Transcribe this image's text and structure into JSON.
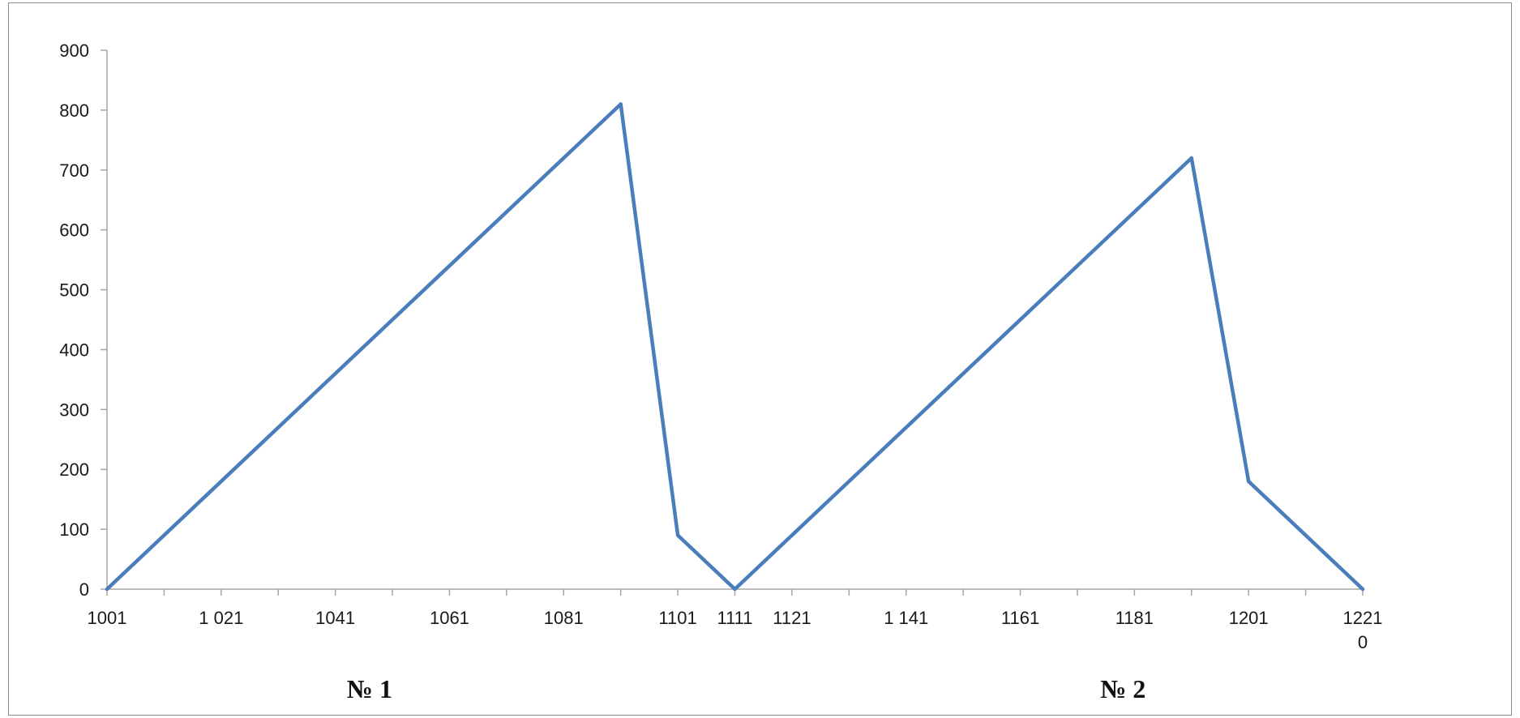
{
  "chart_data": {
    "type": "line",
    "title": "",
    "xlabel": "",
    "ylabel": "",
    "x": [
      0,
      90,
      100,
      110,
      190,
      200,
      220
    ],
    "series": [
      {
        "values": [
          0,
          810,
          90,
          0,
          720,
          180,
          0
        ],
        "color": "#4a7ebb"
      }
    ],
    "xlim": [
      0,
      220
    ],
    "ylim": [
      0,
      900
    ],
    "yticks": [
      0,
      100,
      200,
      300,
      400,
      500,
      600,
      700,
      800,
      900
    ],
    "xticks": [
      0,
      10,
      20,
      30,
      40,
      50,
      60,
      70,
      80,
      90,
      100,
      110,
      120,
      130,
      140,
      150,
      160,
      170,
      180,
      190,
      200,
      210,
      220
    ],
    "xtick_labels": [
      {
        "x": 0,
        "label": "1001"
      },
      {
        "x": 20,
        "label": "1 021"
      },
      {
        "x": 40,
        "label": "1041"
      },
      {
        "x": 60,
        "label": "1061"
      },
      {
        "x": 80,
        "label": "1081"
      },
      {
        "x": 100,
        "label": "1101"
      },
      {
        "x": 110,
        "label": "1111"
      },
      {
        "x": 120,
        "label": "1121"
      },
      {
        "x": 140,
        "label": "1 141"
      },
      {
        "x": 160,
        "label": "1161"
      },
      {
        "x": 180,
        "label": "1181"
      },
      {
        "x": 200,
        "label": "1201"
      },
      {
        "x": 220,
        "label": "1221",
        "label2": "0"
      }
    ],
    "grid": false,
    "legend": "none",
    "annotations": [
      {
        "x": 46,
        "label": "№ 1"
      },
      {
        "x": 178,
        "label": "№ 2"
      }
    ]
  },
  "colors": {
    "axis": "#a6a6a6",
    "line": "#4a7ebb",
    "frame": "#8c8c8c"
  }
}
